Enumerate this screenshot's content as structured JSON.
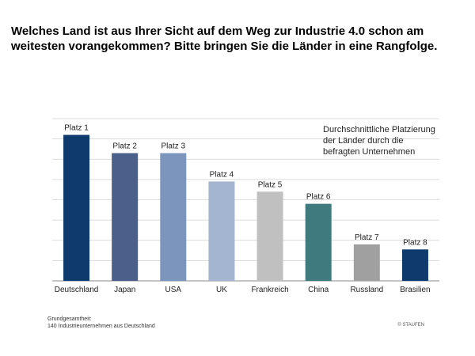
{
  "title": "Welches Land ist aus Ihrer Sicht auf dem Weg zur Industrie 4.0 schon am weitesten vorangekommen? Bitte bringen Sie die Länder in eine Rangfolge.",
  "note": "Durchschnittliche Platzierung der Länder durch die befragten Unternehmen",
  "footer": {
    "line1": "Grundgesamtheit:",
    "line2": "140 Industrieunternehmen aus Deutschland",
    "copyright": "© STAUFEN"
  },
  "chart_data": {
    "type": "bar",
    "categories": [
      "Deutschland",
      "Japan",
      "USA",
      "UK",
      "Frankreich",
      "China",
      "Russland",
      "Brasilien"
    ],
    "values": [
      7.2,
      6.3,
      6.3,
      4.9,
      4.4,
      3.8,
      1.8,
      1.55
    ],
    "data_labels": [
      "Platz 1",
      "Platz 2",
      "Platz 3",
      "Platz 4",
      "Platz 5",
      "Platz 6",
      "Platz 7",
      "Platz 8"
    ],
    "colors": [
      "#0e3a6e",
      "#4a5f8a",
      "#7b95bd",
      "#a3b5d1",
      "#c0c0c0",
      "#3f7b7e",
      "#a0a0a0",
      "#0e3a6e"
    ],
    "ylim": [
      0,
      8
    ],
    "grid": true
  }
}
